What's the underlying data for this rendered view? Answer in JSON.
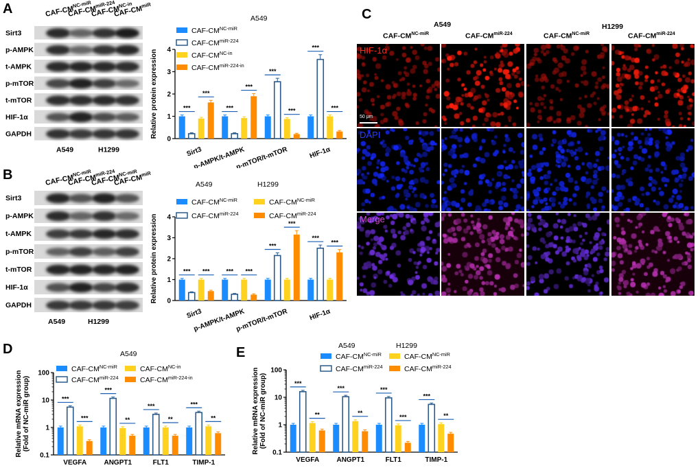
{
  "panels": {
    "A": {
      "label": "A",
      "blot": {
        "lanes": [
          "CAF-CM",
          "CAF-CM",
          "CAF-CM",
          "CAF-CM"
        ],
        "lane_sups": [
          "NC-miR",
          "miR-224",
          "NC-in",
          "miR-224-in"
        ],
        "rows": [
          "Sirt3",
          "p-AMPK",
          "t-AMPK",
          "p-mTOR",
          "t-mTOR",
          "HIF-1α",
          "GAPDH"
        ],
        "bottom": [
          "A549",
          "H1299"
        ]
      }
    },
    "B": {
      "label": "B",
      "blot": {
        "lanes": [
          "CAF-CM",
          "CAF-CM",
          "CAF-CM",
          "CAF-CM"
        ],
        "lane_sups": [
          "NC-miR",
          "miR-224",
          "NC-miR",
          "miR-224"
        ],
        "rows": [
          "Sirt3",
          "p-AMPK",
          "t-AMPK",
          "p-mTOR",
          "t-mTOR",
          "HIF-1α",
          "GAPDH"
        ],
        "bottom": [
          "A549",
          "H1299"
        ]
      }
    },
    "C": {
      "label": "C",
      "group_a": "A549",
      "group_b": "H1299",
      "columns": [
        "CAF-CM",
        "CAF-CM",
        "CAF-CM",
        "CAF-CM"
      ],
      "column_sups": [
        "NC-miR",
        "miR-224",
        "NC-miR",
        "miR-224"
      ],
      "channels": [
        "HIF-1α",
        "DAPI",
        "Merge"
      ],
      "scale_bar": "50 μm",
      "channel_colors": [
        "#ff2a1a",
        "#2a3cff",
        "#d94ad9"
      ]
    },
    "D": {
      "label": "D"
    },
    "E": {
      "label": "E"
    }
  },
  "chart_data": [
    {
      "id": "A",
      "type": "bar",
      "title": "A549",
      "ylabel": "Relative protein expression",
      "ylim": [
        0,
        4
      ],
      "yticks": [
        "0",
        "1",
        "2",
        "3",
        "4"
      ],
      "categories": [
        "Sirt3",
        "p-AMPK/t-AMPK",
        "p-mTOR/t-mTOR",
        "HIF-1α"
      ],
      "significance": [
        "***",
        "***"
      ],
      "series": [
        {
          "name": "CAF-CM",
          "sup": "NC-miR",
          "color": "#1a8cff",
          "style": "solid",
          "values": [
            1.0,
            1.0,
            1.0,
            1.0
          ]
        },
        {
          "name": "CAF-CM",
          "sup": "miR-224",
          "color": "#2a5a8a",
          "style": "hollow",
          "values": [
            0.22,
            0.22,
            2.55,
            3.55
          ]
        },
        {
          "name": "CAF-CM",
          "sup": "NC-in",
          "color": "#ffd21f",
          "style": "solid",
          "values": [
            0.9,
            0.92,
            0.88,
            1.0
          ]
        },
        {
          "name": "CAF-CM",
          "sup": "miR-224-in",
          "color": "#ff8c00",
          "style": "solid",
          "values": [
            1.62,
            1.9,
            0.2,
            0.32
          ]
        }
      ]
    },
    {
      "id": "B",
      "type": "bar",
      "title_a": "A549",
      "title_b": "H1299",
      "ylabel": "Relative protein expression",
      "ylim": [
        0,
        4
      ],
      "yticks": [
        "0",
        "1",
        "2",
        "3",
        "4"
      ],
      "categories": [
        "Sirt3",
        "p-AMPK/t-AMPK",
        "p-mTOR/t-mTOR",
        "HIF-1α"
      ],
      "significance": [
        "***",
        "***"
      ],
      "series": [
        {
          "name": "CAF-CM",
          "sup": "NC-miR",
          "color": "#1a8cff",
          "style": "solid",
          "values": [
            1.0,
            1.0,
            1.0,
            1.0
          ]
        },
        {
          "name": "CAF-CM",
          "sup": "miR-224",
          "color": "#2a5a8a",
          "style": "hollow",
          "values": [
            0.38,
            0.3,
            2.15,
            2.5
          ]
        },
        {
          "name": "CAF-CM",
          "sup": "NC-miR",
          "color": "#ffd21f",
          "style": "solid",
          "values": [
            1.0,
            1.0,
            1.0,
            1.0
          ]
        },
        {
          "name": "CAF-CM",
          "sup": "miR-224",
          "color": "#ff8c00",
          "style": "solid",
          "values": [
            0.45,
            0.28,
            3.15,
            2.3
          ]
        }
      ]
    },
    {
      "id": "D",
      "type": "bar",
      "scale": "log",
      "title": "A549",
      "ylabel": "Relative mRNA expression",
      "ylabel2": "(Fold of NC-miR group)",
      "ylim": [
        0.1,
        100
      ],
      "yticks": [
        "0.1",
        "1",
        "10",
        "100"
      ],
      "categories": [
        "VEGFA",
        "ANGPT1",
        "FLT1",
        "TIMP-1"
      ],
      "significance": [
        "***",
        "**"
      ],
      "series": [
        {
          "name": "CAF-CM",
          "sup": "NC-miR",
          "color": "#1a8cff",
          "style": "solid",
          "values": [
            1.0,
            1.0,
            1.0,
            1.0
          ]
        },
        {
          "name": "CAF-CM",
          "sup": "miR-224",
          "color": "#2a5a8a",
          "style": "hollow",
          "values": [
            5.5,
            11.5,
            3.0,
            3.5
          ]
        },
        {
          "name": "CAF-CM",
          "sup": "NC-in",
          "color": "#ffd21f",
          "style": "solid",
          "values": [
            1.1,
            0.95,
            1.0,
            1.1
          ]
        },
        {
          "name": "CAF-CM",
          "sup": "miR-224-in",
          "color": "#ff8c00",
          "style": "solid",
          "values": [
            0.32,
            0.5,
            0.5,
            0.62
          ]
        }
      ]
    },
    {
      "id": "E",
      "type": "bar",
      "scale": "log",
      "title_a": "A549",
      "title_b": "H1299",
      "ylabel": "Relative mRNA expression",
      "ylabel2": "(Fold of NC-miR group)",
      "ylim": [
        0.1,
        100
      ],
      "yticks": [
        "0.1",
        "1",
        "10",
        "100"
      ],
      "categories": [
        "VEGFA",
        "ANGPT1",
        "FLT1",
        "TIMP-1"
      ],
      "significance": [
        "***",
        "**"
      ],
      "series": [
        {
          "name": "CAF-CM",
          "sup": "NC-miR",
          "color": "#1a8cff",
          "style": "solid",
          "values": [
            1.0,
            1.0,
            1.0,
            1.0
          ]
        },
        {
          "name": "CAF-CM",
          "sup": "miR-224",
          "color": "#2a5a8a",
          "style": "hollow",
          "values": [
            16.0,
            10.5,
            9.5,
            5.5
          ]
        },
        {
          "name": "CAF-CM",
          "sup": "NC-miR",
          "color": "#ffd21f",
          "style": "solid",
          "values": [
            1.15,
            1.35,
            0.95,
            1.05
          ]
        },
        {
          "name": "CAF-CM",
          "sup": "miR-224",
          "color": "#ff8c00",
          "style": "solid",
          "values": [
            0.62,
            0.58,
            0.22,
            0.47
          ]
        }
      ]
    }
  ],
  "sig_patterns": {
    "A": [
      [
        "***",
        "***"
      ],
      [
        "***",
        "***"
      ],
      [
        "***",
        "***"
      ],
      [
        "***",
        "***"
      ]
    ],
    "B": [
      [
        "***",
        "***"
      ],
      [
        "***",
        "***"
      ],
      [
        "***",
        "***"
      ],
      [
        "***",
        "***"
      ]
    ],
    "D": [
      [
        "***",
        "***"
      ],
      [
        "***",
        "**"
      ],
      [
        "***",
        "**"
      ],
      [
        "***",
        "**"
      ]
    ],
    "E": [
      [
        "***",
        "**"
      ],
      [
        "***",
        "**"
      ],
      [
        "***",
        "***"
      ],
      [
        "***",
        "**"
      ]
    ]
  }
}
